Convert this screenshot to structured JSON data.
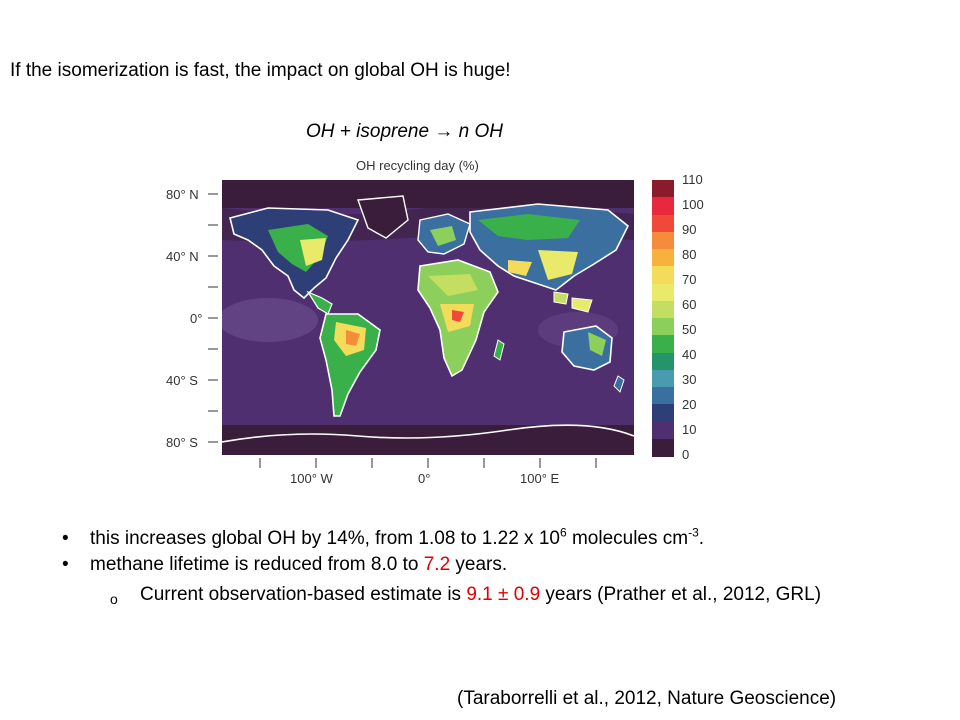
{
  "headline": "If the isomerization is fast, the impact on global OH is huge!",
  "equation": "OH + isoprene → n OH",
  "map": {
    "title": "OH recycling day (%)",
    "lat_labels": [
      "80° N",
      "40° N",
      "0°",
      "40° S",
      "80° S"
    ],
    "lon_labels": [
      "100° W",
      "0°",
      "100° E"
    ],
    "colorbar": {
      "ticks": [
        "110",
        "100",
        "90",
        "80",
        "70",
        "60",
        "50",
        "40",
        "30",
        "20",
        "10",
        "0"
      ],
      "colors": [
        "#8b1a2b",
        "#e8283c",
        "#f0493a",
        "#f58c3b",
        "#f7b23d",
        "#f3dc5a",
        "#eaea6a",
        "#c4de62",
        "#8ccf5b",
        "#3ab04a",
        "#25946a",
        "#4a9ab0",
        "#3a6fa0",
        "#2e3f78",
        "#4f2f6f",
        "#3a1d3a"
      ]
    }
  },
  "bullets": {
    "b1": {
      "prefix": "this increases global OH by 14%, from 1.08 to 1.22 x 10",
      "sup1": "6",
      "middle": " molecules cm",
      "sup2": "-3",
      "end": "."
    },
    "b2": {
      "prefix": "methane lifetime is reduced from 8.0 to ",
      "highlight": "7.2",
      "suffix": " years."
    },
    "b3": {
      "marker": "o",
      "prefix": "Current observation-based estimate is ",
      "highlight": "9.1 ± 0.9",
      "suffix": " years (Prather et al., 2012, GRL)"
    }
  },
  "citation": "(Taraborrelli et al., 2012, Nature Geoscience)"
}
